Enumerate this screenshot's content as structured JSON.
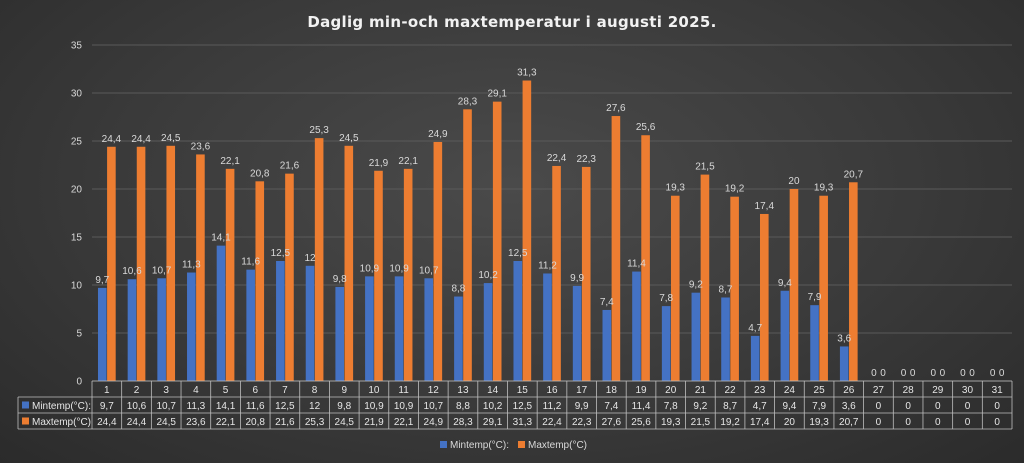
{
  "colors": {
    "min_series": "#4472C4",
    "max_series": "#ED7D31",
    "background": "#3a3a3a",
    "text": "#d9d9d9"
  },
  "chart_data": {
    "type": "bar",
    "title": "Daglig min-och maxtemperatur i augusti 2025.",
    "xlabel": "",
    "ylabel": "",
    "ylim": [
      0,
      35
    ],
    "yticks": [
      0,
      5,
      10,
      15,
      20,
      25,
      30,
      35
    ],
    "grid": true,
    "legend_position": "bottom",
    "data_table": true,
    "categories": [
      "1",
      "2",
      "3",
      "4",
      "5",
      "6",
      "7",
      "8",
      "9",
      "10",
      "11",
      "12",
      "13",
      "14",
      "15",
      "16",
      "17",
      "18",
      "19",
      "20",
      "21",
      "22",
      "23",
      "24",
      "25",
      "26",
      "27",
      "28",
      "29",
      "30",
      "31"
    ],
    "series": [
      {
        "name": "Mintemp(°C):",
        "color": "#4472C4",
        "values": [
          9.7,
          10.6,
          10.7,
          11.3,
          14.1,
          11.6,
          12.5,
          12,
          9.8,
          10.9,
          10.9,
          10.7,
          8.8,
          10.2,
          12.5,
          11.2,
          9.9,
          7.4,
          11.4,
          7.8,
          9.2,
          8.7,
          4.7,
          9.4,
          7.9,
          3.6,
          0,
          0,
          0,
          0,
          0
        ],
        "labels": [
          "9,7",
          "10,6",
          "10,7",
          "11,3",
          "14,1",
          "11,6",
          "12,5",
          "12",
          "9,8",
          "10,9",
          "10,9",
          "10,7",
          "8,8",
          "10,2",
          "12,5",
          "11,2",
          "9,9",
          "7,4",
          "11,4",
          "7,8",
          "9,2",
          "8,7",
          "4,7",
          "9,4",
          "7,9",
          "3,6",
          "0",
          "0",
          "0",
          "0",
          "0"
        ]
      },
      {
        "name": "Maxtemp(°C)",
        "table_name": "Maxtemp(°C)",
        "color": "#ED7D31",
        "values": [
          24.4,
          24.4,
          24.5,
          23.6,
          22.1,
          20.8,
          21.6,
          25.3,
          24.5,
          21.9,
          22.1,
          24.9,
          28.3,
          29.1,
          31.3,
          22.4,
          22.3,
          27.6,
          25.6,
          19.3,
          21.5,
          19.2,
          17.4,
          20,
          19.3,
          20.7,
          0,
          0,
          0,
          0,
          0
        ],
        "labels": [
          "24,4",
          "24,4",
          "24,5",
          "23,6",
          "22,1",
          "20,8",
          "21,6",
          "25,3",
          "24,5",
          "21,9",
          "22,1",
          "24,9",
          "28,3",
          "29,1",
          "31,3",
          "22,4",
          "22,3",
          "27,6",
          "25,6",
          "19,3",
          "21,5",
          "19,2",
          "17,4",
          "20",
          "19,3",
          "20,7",
          "0",
          "0",
          "0",
          "0",
          "0"
        ]
      }
    ]
  }
}
